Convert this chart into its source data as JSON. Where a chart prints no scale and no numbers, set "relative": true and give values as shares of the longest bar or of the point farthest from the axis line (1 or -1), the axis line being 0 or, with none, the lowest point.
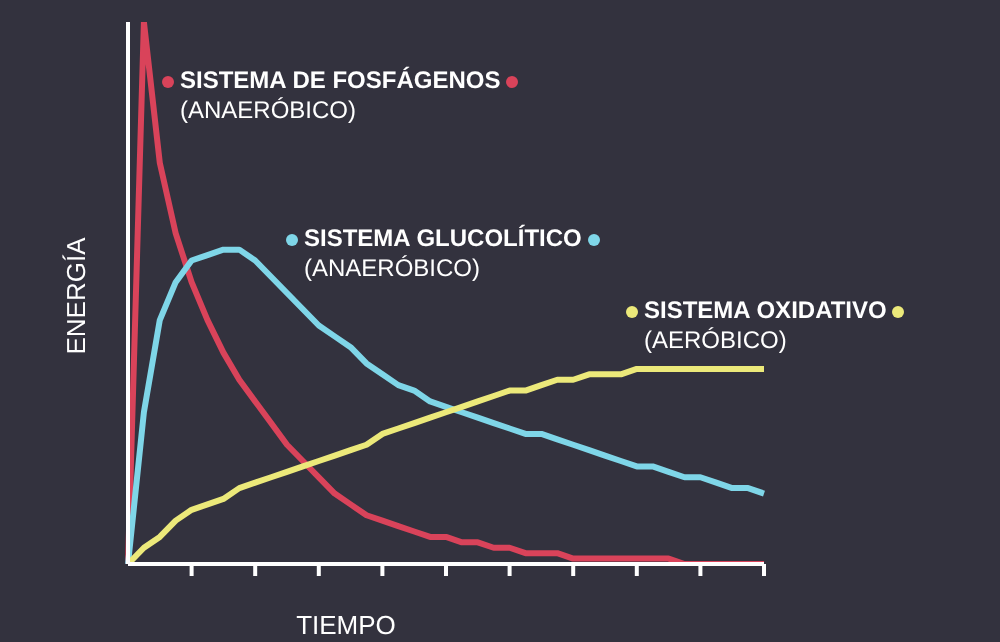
{
  "chart_data": {
    "type": "line",
    "relative": true,
    "xlabel": "TIEMPO",
    "ylabel": "ENERGÍA",
    "legend": "top",
    "categories": [
      null,
      null,
      null,
      null,
      null,
      null,
      null,
      null,
      null,
      null,
      null,
      null,
      null,
      null,
      null,
      null,
      null,
      null,
      null,
      null,
      null,
      null,
      null,
      null,
      null,
      null,
      null,
      null,
      null,
      null,
      null,
      null,
      null,
      null,
      null,
      null,
      null,
      null,
      null,
      null,
      null
    ],
    "series": [
      {
        "name": "SISTEMA DE FOSFÁGENOS\n(ANAERÓBICO)",
        "color": "#d9435a",
        "values": [
          0,
          1,
          0.74,
          0.61,
          0.52,
          0.45,
          0.39,
          0.34,
          0.3,
          0.26,
          0.22,
          0.19,
          0.16,
          0.13,
          0.11,
          0.09,
          0.08,
          0.07,
          0.06,
          0.05,
          0.05,
          0.04,
          0.04,
          0.03,
          0.03,
          0.02,
          0.02,
          0.02,
          0.01,
          0.01,
          0.01,
          0.01,
          0.01,
          0.01,
          0.01,
          0,
          0,
          0,
          0,
          0,
          0
        ]
      },
      {
        "name": "SISTEMA GLUCOLÍTICO\n(ANAERÓBICO)",
        "color": "#7fd6e8",
        "values": [
          0,
          0.28,
          0.45,
          0.52,
          0.56,
          0.57,
          0.58,
          0.58,
          0.56,
          0.53,
          0.5,
          0.47,
          0.44,
          0.42,
          0.4,
          0.37,
          0.35,
          0.33,
          0.32,
          0.3,
          0.29,
          0.28,
          0.27,
          0.26,
          0.25,
          0.24,
          0.24,
          0.23,
          0.22,
          0.21,
          0.2,
          0.19,
          0.18,
          0.18,
          0.17,
          0.16,
          0.16,
          0.15,
          0.14,
          0.14,
          0.13
        ]
      },
      {
        "name": "SISTEMA OXIDATIVO\n(AERÓBICO)",
        "color": "#ece97a",
        "values": [
          0,
          0.03,
          0.05,
          0.08,
          0.1,
          0.11,
          0.12,
          0.14,
          0.15,
          0.16,
          0.17,
          0.18,
          0.19,
          0.2,
          0.21,
          0.22,
          0.24,
          0.25,
          0.26,
          0.27,
          0.28,
          0.29,
          0.3,
          0.31,
          0.32,
          0.32,
          0.33,
          0.34,
          0.34,
          0.35,
          0.35,
          0.35,
          0.36,
          0.36,
          0.36,
          0.36,
          0.36,
          0.36,
          0.36,
          0.36,
          0.36
        ]
      }
    ]
  }
}
